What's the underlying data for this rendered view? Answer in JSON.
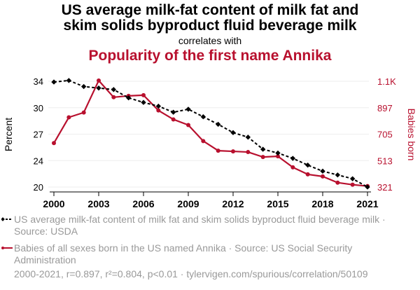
{
  "header": {
    "title_line1": "US average milk-fat content of milk fat and",
    "title_line2": "skim solids byproduct fluid beverage milk",
    "subtitle": "correlates with",
    "title2": "Popularity of the first name Annika"
  },
  "legend": {
    "series1": "US average milk-fat content of milk fat and skim solids byproduct fluid beverage milk · Source: USDA",
    "series2": "Babies of all sexes born in the US named Annika · Source: US Social Security Administration"
  },
  "footer": "2000-2021, r=0.897, r²=0.804, p<0.01 · tylervigen.com/spurious/correlation/50109",
  "chart_data": {
    "type": "line",
    "x": [
      2000,
      2001,
      2002,
      2003,
      2004,
      2005,
      2006,
      2007,
      2008,
      2009,
      2010,
      2011,
      2012,
      2013,
      2014,
      2015,
      2016,
      2017,
      2018,
      2019,
      2020,
      2021
    ],
    "x_ticks": [
      "2000",
      "2003",
      "2006",
      "2009",
      "2012",
      "2015",
      "2018",
      "2021"
    ],
    "ylabel_left": "Percent",
    "ylabel_right": "Babies born",
    "yticks_left": [
      "34",
      "30",
      "27",
      "24",
      "20"
    ],
    "yticks_right": [
      "1.1K",
      "897",
      "705",
      "513",
      "321"
    ],
    "ylim_left": [
      20,
      34
    ],
    "ylim_right": [
      321,
      1089
    ],
    "grid": true,
    "colors": {
      "series1": "#000000",
      "series2": "#b8102e"
    },
    "series": [
      {
        "name": "US average milk-fat content of milk fat and skim solids byproduct fluid beverage milk",
        "axis": "left",
        "values": [
          33.9,
          34.1,
          33.3,
          33.1,
          32.9,
          31.8,
          31.2,
          30.7,
          29.9,
          30.3,
          29.3,
          28.3,
          27.2,
          26.6,
          25.0,
          24.5,
          23.8,
          22.9,
          22.1,
          21.6,
          21.1,
          20.0
        ]
      },
      {
        "name": "Babies of all sexes born in the US named Annika",
        "axis": "right",
        "values": [
          640,
          827,
          862,
          1094,
          973,
          983,
          988,
          877,
          812,
          771,
          655,
          585,
          580,
          575,
          539,
          544,
          464,
          413,
          398,
          353,
          338,
          328
        ]
      }
    ]
  }
}
